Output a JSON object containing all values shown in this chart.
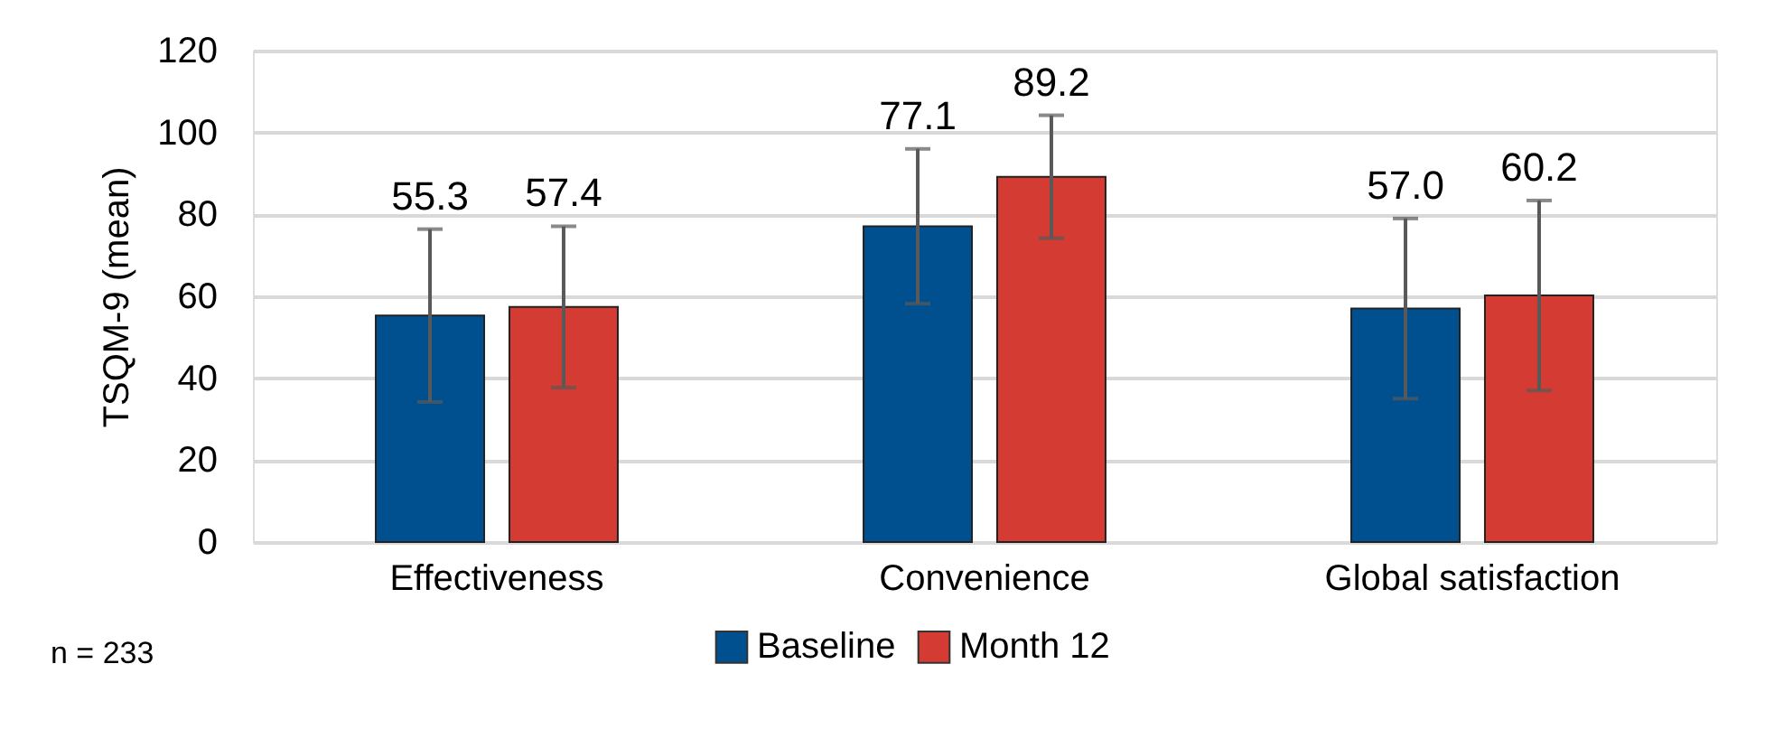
{
  "chart_data": {
    "type": "bar",
    "ylabel": "TSQM-9 (mean)",
    "categories": [
      "Effectiveness",
      "Convenience",
      "Global satisfaction"
    ],
    "series": [
      {
        "name": "Baseline",
        "color": "#00508f",
        "values": [
          55.3,
          77.1,
          57.0
        ],
        "value_labels": [
          "55.3",
          "77.1",
          "57.0"
        ],
        "errors": [
          21.1,
          18.9,
          22.0
        ]
      },
      {
        "name": "Month 12",
        "color": "#d43b33",
        "values": [
          57.4,
          89.2,
          60.2
        ],
        "value_labels": [
          "57.4",
          "89.2",
          "60.2"
        ],
        "errors": [
          19.7,
          15.0,
          23.2
        ]
      }
    ],
    "ylim": [
      0,
      120
    ],
    "yticks": [
      0,
      20,
      40,
      60,
      80,
      100,
      120
    ],
    "grid": "y",
    "legend": "bottom",
    "annotations": [
      "n = 233"
    ]
  }
}
